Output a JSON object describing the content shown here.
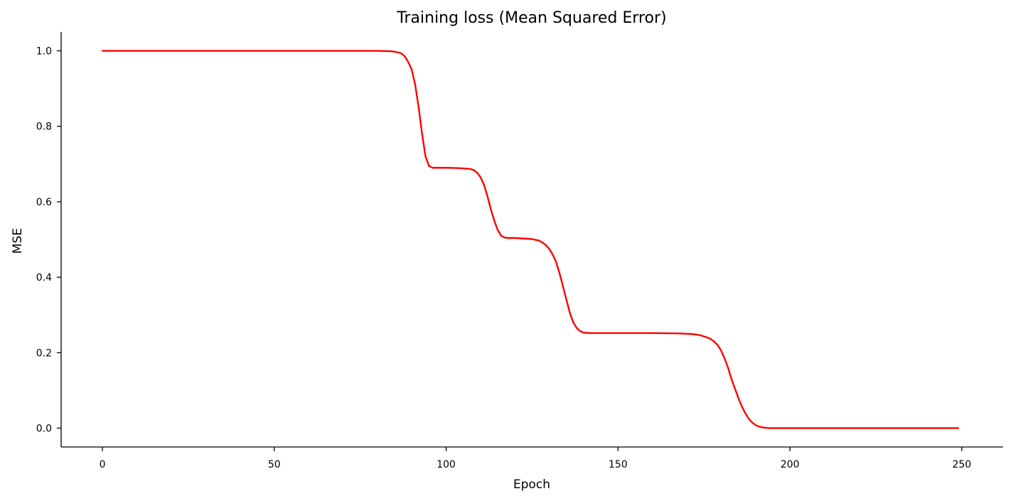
{
  "chart_data": {
    "type": "line",
    "title": "Training loss (Mean Squared Error)",
    "xlabel": "Epoch",
    "ylabel": "MSE",
    "xlim": [
      -12,
      262
    ],
    "ylim": [
      -0.05,
      1.05
    ],
    "xticks": [
      0,
      50,
      100,
      150,
      200,
      250
    ],
    "yticks": [
      0.0,
      0.2,
      0.4,
      0.6,
      0.8,
      1.0
    ],
    "xtick_labels": [
      "0",
      "50",
      "100",
      "150",
      "200",
      "250"
    ],
    "ytick_labels": [
      "0.0",
      "0.2",
      "0.4",
      "0.6",
      "0.8",
      "1.0"
    ],
    "grid": false,
    "legend": false,
    "series": [
      {
        "color": "#ff0000",
        "x": [
          0,
          10,
          20,
          30,
          40,
          50,
          60,
          70,
          80,
          84,
          86,
          87,
          88,
          89,
          90,
          91,
          92,
          93,
          94,
          95,
          96,
          98,
          100,
          104,
          107,
          108,
          109,
          110,
          111,
          112,
          113,
          114,
          115,
          116,
          117,
          118,
          120,
          125,
          127,
          128,
          129,
          130,
          131,
          132,
          133,
          134,
          135,
          136,
          137,
          138,
          139,
          140,
          142,
          145,
          150,
          160,
          168,
          172,
          174,
          176,
          177,
          178,
          179,
          180,
          181,
          182,
          183,
          184,
          185,
          186,
          187,
          188,
          189,
          190,
          191,
          192,
          193,
          194,
          196,
          200,
          210,
          220,
          230,
          240,
          249
        ],
        "y": [
          1.0,
          1.0,
          1.0,
          1.0,
          1.0,
          1.0,
          1.0,
          1.0,
          1.0,
          0.999,
          0.996,
          0.993,
          0.985,
          0.97,
          0.95,
          0.91,
          0.85,
          0.78,
          0.72,
          0.695,
          0.69,
          0.69,
          0.69,
          0.689,
          0.687,
          0.684,
          0.677,
          0.665,
          0.645,
          0.615,
          0.58,
          0.55,
          0.525,
          0.51,
          0.505,
          0.504,
          0.504,
          0.501,
          0.497,
          0.492,
          0.485,
          0.475,
          0.46,
          0.44,
          0.41,
          0.375,
          0.34,
          0.305,
          0.28,
          0.265,
          0.257,
          0.253,
          0.252,
          0.252,
          0.252,
          0.252,
          0.251,
          0.249,
          0.246,
          0.24,
          0.236,
          0.229,
          0.22,
          0.205,
          0.185,
          0.16,
          0.13,
          0.105,
          0.08,
          0.058,
          0.04,
          0.025,
          0.015,
          0.008,
          0.004,
          0.002,
          0.001,
          0.0,
          0.0,
          0.0,
          0.0,
          0.0,
          0.0,
          0.0,
          0.0
        ]
      }
    ]
  }
}
